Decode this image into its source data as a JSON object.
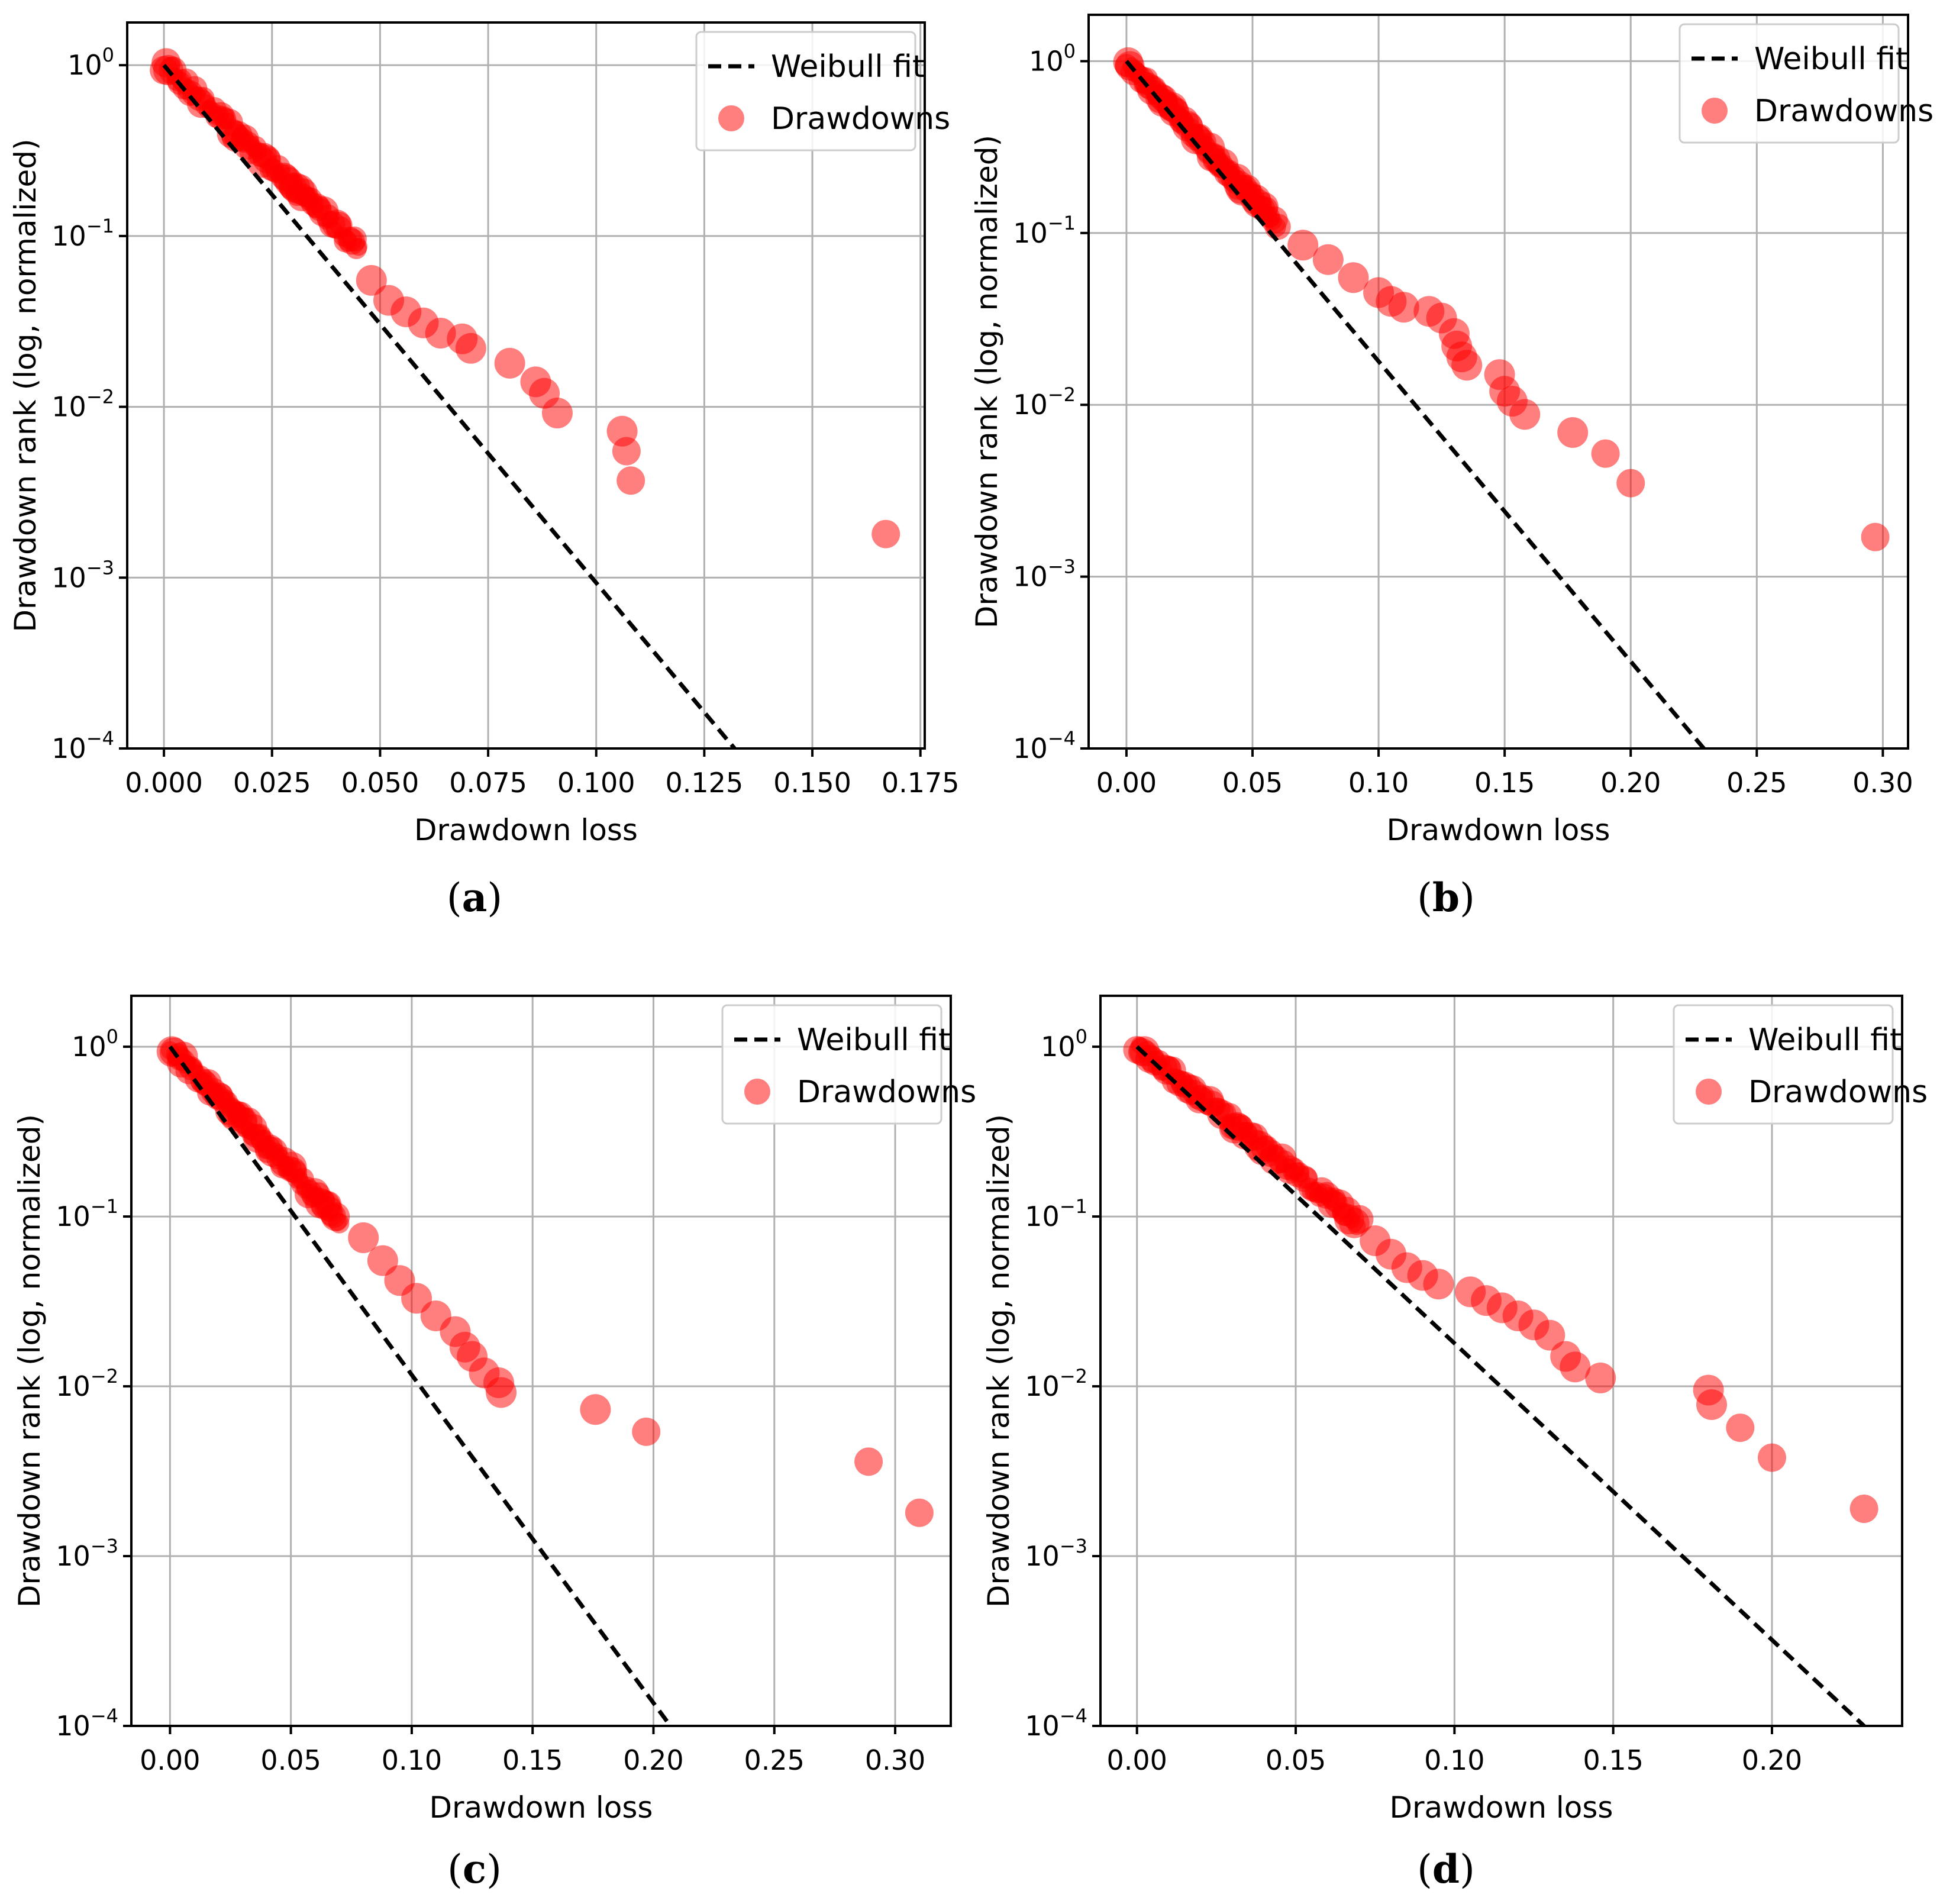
{
  "figure": {
    "colors": {
      "drawdowns": "#ff0000",
      "fit": "#000000",
      "grid": "#b0b0b0"
    }
  },
  "chart_data": [
    {
      "id": "a",
      "panel_label": "a",
      "type": "scatter",
      "xlabel": "Drawdown loss",
      "ylabel": "Drawdown rank (log, normalized)",
      "yscale": "log",
      "xlim": [
        -0.0085,
        0.176
      ],
      "ylim_exp": [
        -4,
        0.25
      ],
      "xticks": [
        "0.000",
        "0.025",
        "0.050",
        "0.075",
        "0.100",
        "0.125",
        "0.150",
        "0.175"
      ],
      "xtick_values": [
        0,
        0.025,
        0.05,
        0.075,
        0.1,
        0.125,
        0.15,
        0.175
      ],
      "yticks": [
        {
          "base": "10",
          "exp": "0"
        },
        {
          "base": "10",
          "exp": "−1"
        },
        {
          "base": "10",
          "exp": "−2"
        },
        {
          "base": "10",
          "exp": "−3"
        },
        {
          "base": "10",
          "exp": "−4"
        }
      ],
      "ytick_exps": [
        0,
        -1,
        -2,
        -3,
        -4
      ],
      "legend": {
        "fit": "Weibull fit",
        "drawdowns": "Drawdowns",
        "position": "upper right"
      },
      "weibull_fit": {
        "x": [
          0,
          0.132
        ],
        "rank": [
          1.0,
          0.0001
        ]
      },
      "drawdowns": {
        "body_x": [
          0.0,
          0.045
        ],
        "body_rank": [
          1.0,
          0.085
        ],
        "outliers": [
          {
            "x": 0.048,
            "rank": 0.055
          },
          {
            "x": 0.052,
            "rank": 0.042
          },
          {
            "x": 0.056,
            "rank": 0.036
          },
          {
            "x": 0.06,
            "rank": 0.031
          },
          {
            "x": 0.064,
            "rank": 0.027
          },
          {
            "x": 0.069,
            "rank": 0.025
          },
          {
            "x": 0.071,
            "rank": 0.022
          },
          {
            "x": 0.08,
            "rank": 0.018
          },
          {
            "x": 0.086,
            "rank": 0.014
          },
          {
            "x": 0.088,
            "rank": 0.012
          },
          {
            "x": 0.091,
            "rank": 0.0092
          },
          {
            "x": 0.106,
            "rank": 0.0072
          },
          {
            "x": 0.107,
            "rank": 0.0055
          },
          {
            "x": 0.108,
            "rank": 0.0037
          },
          {
            "x": 0.167,
            "rank": 0.0018
          }
        ]
      }
    },
    {
      "id": "b",
      "panel_label": "b",
      "type": "scatter",
      "xlabel": "Drawdown loss",
      "ylabel": "Drawdown rank (log, normalized)",
      "yscale": "log",
      "xlim": [
        -0.015,
        0.31
      ],
      "ylim_exp": [
        -4,
        0.27
      ],
      "xticks": [
        "0.00",
        "0.05",
        "0.10",
        "0.15",
        "0.20",
        "0.25",
        "0.30"
      ],
      "xtick_values": [
        0,
        0.05,
        0.1,
        0.15,
        0.2,
        0.25,
        0.3
      ],
      "yticks": [
        {
          "base": "10",
          "exp": "0"
        },
        {
          "base": "10",
          "exp": "−1"
        },
        {
          "base": "10",
          "exp": "−2"
        },
        {
          "base": "10",
          "exp": "−3"
        },
        {
          "base": "10",
          "exp": "−4"
        }
      ],
      "ytick_exps": [
        0,
        -1,
        -2,
        -3,
        -4
      ],
      "legend": {
        "fit": "Weibull fit",
        "drawdowns": "Drawdowns",
        "position": "upper right"
      },
      "weibull_fit": {
        "x": [
          0,
          0.229
        ],
        "rank": [
          1.0,
          0.0001
        ]
      },
      "drawdowns": {
        "body_x": [
          0.0,
          0.06
        ],
        "body_rank": [
          1.0,
          0.11
        ],
        "outliers": [
          {
            "x": 0.07,
            "rank": 0.085
          },
          {
            "x": 0.08,
            "rank": 0.07
          },
          {
            "x": 0.09,
            "rank": 0.055
          },
          {
            "x": 0.1,
            "rank": 0.045
          },
          {
            "x": 0.105,
            "rank": 0.04
          },
          {
            "x": 0.11,
            "rank": 0.037
          },
          {
            "x": 0.12,
            "rank": 0.035
          },
          {
            "x": 0.125,
            "rank": 0.032
          },
          {
            "x": 0.13,
            "rank": 0.026
          },
          {
            "x": 0.131,
            "rank": 0.022
          },
          {
            "x": 0.133,
            "rank": 0.019
          },
          {
            "x": 0.135,
            "rank": 0.017
          },
          {
            "x": 0.148,
            "rank": 0.015
          },
          {
            "x": 0.15,
            "rank": 0.012
          },
          {
            "x": 0.153,
            "rank": 0.0105
          },
          {
            "x": 0.158,
            "rank": 0.0088
          },
          {
            "x": 0.177,
            "rank": 0.0069
          },
          {
            "x": 0.19,
            "rank": 0.0052
          },
          {
            "x": 0.2,
            "rank": 0.0035
          },
          {
            "x": 0.297,
            "rank": 0.0017
          }
        ]
      }
    },
    {
      "id": "c",
      "panel_label": "c",
      "type": "scatter",
      "xlabel": "Drawdown loss",
      "ylabel": "Drawdown rank (log, normalized)",
      "yscale": "log",
      "xlim": [
        -0.016,
        0.323
      ],
      "ylim_exp": [
        -4,
        0.3
      ],
      "xticks": [
        "0.00",
        "0.05",
        "0.10",
        "0.15",
        "0.20",
        "0.25",
        "0.30"
      ],
      "xtick_values": [
        0,
        0.05,
        0.1,
        0.15,
        0.2,
        0.25,
        0.3
      ],
      "yticks": [
        {
          "base": "10",
          "exp": "0"
        },
        {
          "base": "10",
          "exp": "−1"
        },
        {
          "base": "10",
          "exp": "−2"
        },
        {
          "base": "10",
          "exp": "−3"
        },
        {
          "base": "10",
          "exp": "−4"
        }
      ],
      "ytick_exps": [
        0,
        -1,
        -2,
        -3,
        -4
      ],
      "legend": {
        "fit": "Weibull fit",
        "drawdowns": "Drawdowns",
        "position": "upper right"
      },
      "weibull_fit": {
        "x": [
          0,
          0.207
        ],
        "rank": [
          1.0,
          0.0001
        ]
      },
      "drawdowns": {
        "body_x": [
          0.0,
          0.07
        ],
        "body_rank": [
          1.0,
          0.095
        ],
        "outliers": [
          {
            "x": 0.08,
            "rank": 0.075
          },
          {
            "x": 0.088,
            "rank": 0.055
          },
          {
            "x": 0.095,
            "rank": 0.042
          },
          {
            "x": 0.102,
            "rank": 0.033
          },
          {
            "x": 0.11,
            "rank": 0.026
          },
          {
            "x": 0.118,
            "rank": 0.021
          },
          {
            "x": 0.122,
            "rank": 0.017
          },
          {
            "x": 0.125,
            "rank": 0.015
          },
          {
            "x": 0.13,
            "rank": 0.012
          },
          {
            "x": 0.136,
            "rank": 0.0105
          },
          {
            "x": 0.137,
            "rank": 0.0092
          },
          {
            "x": 0.176,
            "rank": 0.0073
          },
          {
            "x": 0.197,
            "rank": 0.0054
          },
          {
            "x": 0.289,
            "rank": 0.0036
          },
          {
            "x": 0.31,
            "rank": 0.0018
          }
        ]
      }
    },
    {
      "id": "d",
      "panel_label": "d",
      "type": "scatter",
      "xlabel": "Drawdown loss",
      "ylabel": "Drawdown rank (log, normalized)",
      "yscale": "log",
      "xlim": [
        -0.0115,
        0.241
      ],
      "ylim_exp": [
        -4,
        0.3
      ],
      "xticks": [
        "0.00",
        "0.05",
        "0.10",
        "0.15",
        "0.20"
      ],
      "xtick_values": [
        0,
        0.05,
        0.1,
        0.15,
        0.2
      ],
      "yticks": [
        {
          "base": "10",
          "exp": "0"
        },
        {
          "base": "10",
          "exp": "−1"
        },
        {
          "base": "10",
          "exp": "−2"
        },
        {
          "base": "10",
          "exp": "−3"
        },
        {
          "base": "10",
          "exp": "−4"
        }
      ],
      "ytick_exps": [
        0,
        -1,
        -2,
        -3,
        -4
      ],
      "legend": {
        "fit": "Weibull fit",
        "drawdowns": "Drawdowns",
        "position": "upper right"
      },
      "weibull_fit": {
        "x": [
          0,
          0.229
        ],
        "rank": [
          1.0,
          0.0001
        ]
      },
      "drawdowns": {
        "body_x": [
          0.0,
          0.07
        ],
        "body_rank": [
          1.0,
          0.09
        ],
        "outliers": [
          {
            "x": 0.075,
            "rank": 0.072
          },
          {
            "x": 0.08,
            "rank": 0.06
          },
          {
            "x": 0.085,
            "rank": 0.05
          },
          {
            "x": 0.09,
            "rank": 0.045
          },
          {
            "x": 0.095,
            "rank": 0.04
          },
          {
            "x": 0.105,
            "rank": 0.036
          },
          {
            "x": 0.11,
            "rank": 0.032
          },
          {
            "x": 0.115,
            "rank": 0.029
          },
          {
            "x": 0.12,
            "rank": 0.026
          },
          {
            "x": 0.125,
            "rank": 0.023
          },
          {
            "x": 0.13,
            "rank": 0.02
          },
          {
            "x": 0.135,
            "rank": 0.015
          },
          {
            "x": 0.138,
            "rank": 0.013
          },
          {
            "x": 0.146,
            "rank": 0.0112
          },
          {
            "x": 0.18,
            "rank": 0.0095
          },
          {
            "x": 0.181,
            "rank": 0.0078
          },
          {
            "x": 0.19,
            "rank": 0.0057
          },
          {
            "x": 0.2,
            "rank": 0.0038
          },
          {
            "x": 0.229,
            "rank": 0.0019
          }
        ]
      }
    }
  ]
}
